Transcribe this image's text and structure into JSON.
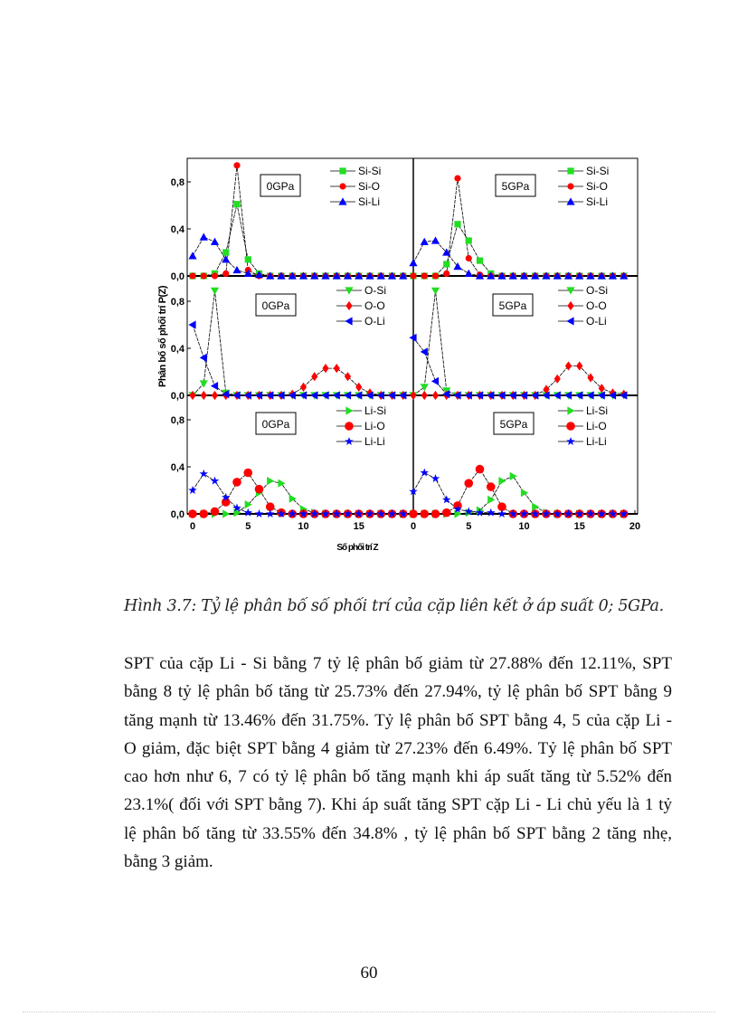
{
  "caption": "Hình 3.7: Tỷ lệ phân bố số phối trí của cặp liên kết ở áp suất 0; 5GPa.",
  "paragraph_lines": [
    "SPT của cặp Li - Si bằng 7 tỷ lệ phân bố giảm  từ 27.88% đến 12.11%, SPT",
    "bằng 8 tỷ lệ phân bố tăng từ 25.73% đến 27.94%, tỷ lệ phân bố SPT bằng 9",
    "tăng mạnh từ 13.46% đến 31.75%. Tỷ lệ phân bố SPT bằng 4, 5  của cặp Li -",
    "O giảm,  đặc biệt SPT bằng 4 giảm từ 27.23% đến 6.49%. Tỷ lệ phân bố SPT",
    "cao hơn như 6, 7  có tỷ lệ phân bố tăng mạnh khi áp suất tăng từ 5.52% đến",
    "23.1%( đối với SPT bằng 7). Khi áp suất tăng SPT cặp Li - Li chủ yếu là 1 tỷ",
    "lệ phân bố tăng từ 33.55% đến 34.8% , tỷ lệ phân bố SPT bằng 2 tăng nhẹ,",
    "bằng 3 giảm."
  ],
  "page_number": "60",
  "chart_data": {
    "type": "line",
    "ylabel": "Phân bố số phối trí P(Z)",
    "xlabel": "Số phối trí Z",
    "y_ticks": [
      "0,0",
      "0,4",
      "0,8"
    ],
    "x_ticks_left": [
      "0",
      "5",
      "10",
      "15"
    ],
    "x_ticks_right": [
      "0",
      "5",
      "10",
      "15",
      "20"
    ],
    "xlim": [
      0,
      20
    ],
    "ylim": [
      0,
      1.0
    ],
    "x": [
      0,
      1,
      2,
      3,
      4,
      5,
      6,
      7,
      8,
      9,
      10,
      11,
      12,
      13,
      14,
      15,
      16,
      17,
      18,
      19
    ],
    "panels": [
      {
        "row": 0,
        "col": 0,
        "pressure": "0GPa",
        "series": [
          {
            "name": "Si-Si",
            "color": "#22dd22",
            "marker": "square",
            "values": [
              0,
              0,
              0.02,
              0.2,
              0.61,
              0.14,
              0.02,
              0,
              0,
              0,
              0,
              0,
              0,
              0,
              0,
              0,
              0,
              0,
              0,
              0
            ]
          },
          {
            "name": "Si-O",
            "color": "#ff0000",
            "marker": "circle",
            "values": [
              0,
              0,
              0,
              0.02,
              0.94,
              0.05,
              0,
              0,
              0,
              0,
              0,
              0,
              0,
              0,
              0,
              0,
              0,
              0,
              0,
              0
            ]
          },
          {
            "name": "Si-Li",
            "color": "#0000ff",
            "marker": "triangle-up",
            "values": [
              0.17,
              0.33,
              0.29,
              0.14,
              0.05,
              0.02,
              0.01,
              0,
              0,
              0,
              0,
              0,
              0,
              0,
              0,
              0,
              0,
              0,
              0,
              0
            ]
          }
        ]
      },
      {
        "row": 0,
        "col": 1,
        "pressure": "5GPa",
        "series": [
          {
            "name": "Si-Si",
            "color": "#22dd22",
            "marker": "square",
            "values": [
              0,
              0,
              0,
              0.1,
              0.44,
              0.3,
              0.13,
              0.02,
              0,
              0,
              0,
              0,
              0,
              0,
              0,
              0,
              0,
              0,
              0,
              0
            ]
          },
          {
            "name": "Si-O",
            "color": "#ff0000",
            "marker": "circle",
            "values": [
              0,
              0,
              0,
              0.02,
              0.83,
              0.15,
              0.01,
              0,
              0,
              0,
              0,
              0,
              0,
              0,
              0,
              0,
              0,
              0,
              0,
              0
            ]
          },
          {
            "name": "Si-Li",
            "color": "#0000ff",
            "marker": "triangle-up",
            "values": [
              0.11,
              0.29,
              0.3,
              0.2,
              0.08,
              0.02,
              0,
              0,
              0,
              0,
              0,
              0,
              0,
              0,
              0,
              0,
              0,
              0,
              0,
              0
            ]
          }
        ]
      },
      {
        "row": 1,
        "col": 0,
        "pressure": "0GPa",
        "series": [
          {
            "name": "O-Si",
            "color": "#22dd22",
            "marker": "triangle-down",
            "values": [
              0,
              0.1,
              0.89,
              0.02,
              0,
              0,
              0,
              0,
              0,
              0,
              0,
              0,
              0,
              0,
              0,
              0,
              0,
              0,
              0,
              0
            ]
          },
          {
            "name": "O-O",
            "color": "#ff0000",
            "marker": "diamond",
            "values": [
              0,
              0,
              0,
              0,
              0,
              0,
              0,
              0,
              0,
              0.01,
              0.07,
              0.16,
              0.23,
              0.23,
              0.16,
              0.07,
              0.02,
              0,
              0,
              0
            ]
          },
          {
            "name": "O-Li",
            "color": "#0000ff",
            "marker": "triangle-left",
            "values": [
              0.6,
              0.32,
              0.08,
              0.01,
              0,
              0,
              0,
              0,
              0,
              0,
              0,
              0,
              0,
              0,
              0,
              0,
              0,
              0,
              0,
              0
            ]
          }
        ]
      },
      {
        "row": 1,
        "col": 1,
        "pressure": "5GPa",
        "series": [
          {
            "name": "O-Si",
            "color": "#22dd22",
            "marker": "triangle-down",
            "values": [
              0,
              0.07,
              0.89,
              0.04,
              0,
              0,
              0,
              0,
              0,
              0,
              0,
              0,
              0,
              0,
              0,
              0,
              0,
              0,
              0,
              0
            ]
          },
          {
            "name": "O-O",
            "color": "#ff0000",
            "marker": "diamond",
            "values": [
              0,
              0,
              0,
              0,
              0,
              0,
              0,
              0,
              0,
              0,
              0,
              0,
              0.05,
              0.14,
              0.25,
              0.25,
              0.15,
              0.06,
              0.02,
              0.01
            ]
          },
          {
            "name": "O-Li",
            "color": "#0000ff",
            "marker": "triangle-left",
            "values": [
              0.49,
              0.37,
              0.12,
              0.01,
              0,
              0,
              0,
              0,
              0,
              0,
              0,
              0,
              0,
              0,
              0,
              0,
              0,
              0,
              0,
              0
            ]
          }
        ]
      },
      {
        "row": 2,
        "col": 0,
        "pressure": "0GPa",
        "series": [
          {
            "name": "Li-Si",
            "color": "#22dd22",
            "marker": "triangle-right",
            "values": [
              0,
              0,
              0,
              0,
              0.01,
              0.08,
              0.18,
              0.28,
              0.26,
              0.13,
              0.04,
              0.01,
              0,
              0,
              0,
              0,
              0,
              0,
              0,
              0
            ]
          },
          {
            "name": "Li-O",
            "color": "#ff0000",
            "marker": "big-circle",
            "values": [
              0,
              0,
              0.02,
              0.1,
              0.27,
              0.35,
              0.21,
              0.06,
              0.01,
              0,
              0,
              0,
              0,
              0,
              0,
              0,
              0,
              0,
              0,
              0
            ]
          },
          {
            "name": "Li-Li",
            "color": "#0000ff",
            "marker": "star",
            "values": [
              0.2,
              0.34,
              0.28,
              0.14,
              0.05,
              0.01,
              0,
              0,
              0,
              0,
              0,
              0,
              0,
              0,
              0,
              0,
              0,
              0,
              0,
              0
            ]
          }
        ]
      },
      {
        "row": 2,
        "col": 1,
        "pressure": "5GPa",
        "series": [
          {
            "name": "Li-Si",
            "color": "#22dd22",
            "marker": "triangle-right",
            "values": [
              0,
              0,
              0,
              0,
              0,
              0.01,
              0.03,
              0.12,
              0.28,
              0.32,
              0.18,
              0.06,
              0.01,
              0,
              0,
              0,
              0,
              0,
              0,
              0
            ]
          },
          {
            "name": "Li-O",
            "color": "#ff0000",
            "marker": "big-circle",
            "values": [
              0,
              0,
              0,
              0.01,
              0.07,
              0.26,
              0.38,
              0.23,
              0.06,
              0,
              0,
              0,
              0,
              0,
              0,
              0,
              0,
              0,
              0,
              0
            ]
          },
          {
            "name": "Li-Li",
            "color": "#0000ff",
            "marker": "star",
            "values": [
              0.19,
              0.35,
              0.3,
              0.12,
              0.04,
              0.02,
              0.01,
              0.01,
              0,
              0,
              0,
              0,
              0,
              0,
              0,
              0,
              0,
              0,
              0,
              0
            ]
          }
        ]
      }
    ]
  }
}
